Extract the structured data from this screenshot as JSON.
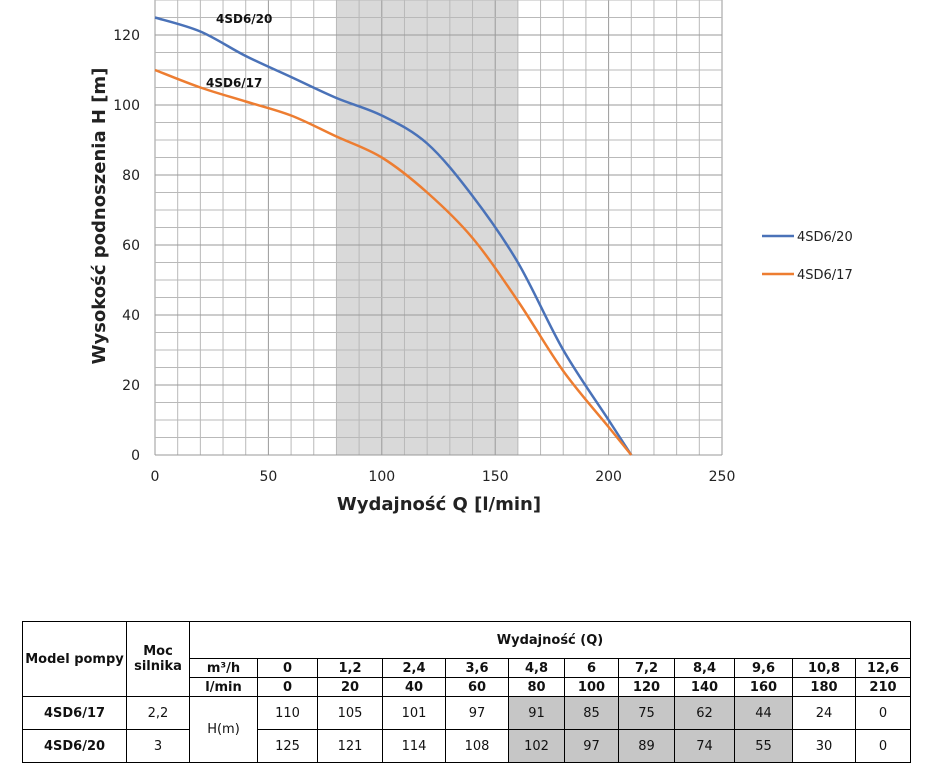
{
  "chart_data": {
    "type": "line",
    "title": "",
    "xlabel": "Wydajność Q [l/min]",
    "ylabel": "Wysokość podnoszenia H [m]",
    "xlim": [
      0,
      250
    ],
    "ylim": [
      0,
      130
    ],
    "xticks": [
      0,
      50,
      100,
      150,
      200,
      250
    ],
    "yticks": [
      0,
      20,
      40,
      60,
      80,
      100,
      120
    ],
    "grid": true,
    "highlight_band": {
      "x": [
        80,
        160
      ],
      "color": "#d9d9d9"
    },
    "legend_position": "right",
    "series": [
      {
        "name": "4SD6/20",
        "color": "#4a72b8",
        "label": "4SD6/20",
        "x": [
          0,
          20,
          40,
          60,
          80,
          100,
          120,
          140,
          160,
          180,
          200,
          210
        ],
        "y": [
          125,
          121,
          114,
          108,
          102,
          97,
          89,
          74,
          55,
          30,
          10,
          0
        ]
      },
      {
        "name": "4SD6/17",
        "color": "#ed7d31",
        "label": "4SD6/17",
        "x": [
          0,
          20,
          40,
          60,
          80,
          100,
          120,
          140,
          160,
          180,
          200,
          210
        ],
        "y": [
          110,
          105,
          101,
          97,
          91,
          85,
          75,
          62,
          44,
          24,
          8,
          0
        ]
      }
    ]
  },
  "table": {
    "model_header": "Model pompy",
    "power_header": [
      "Moc",
      "silnika"
    ],
    "flow_header": "Wydajność (Q)",
    "unit_m3h": "m³/h",
    "unit_lmin": "l/min",
    "m3h": [
      "0",
      "1,2",
      "2,4",
      "3,6",
      "4,8",
      "6",
      "7,2",
      "8,4",
      "9,6",
      "10,8",
      "12,6"
    ],
    "lmin": [
      "0",
      "20",
      "40",
      "60",
      "80",
      "100",
      "120",
      "140",
      "160",
      "180",
      "210"
    ],
    "h_label": "H(m)",
    "shaded_columns": [
      4,
      5,
      6,
      7,
      8
    ],
    "rows": [
      {
        "model": "4SD6/17",
        "power": "2,2",
        "values": [
          "110",
          "105",
          "101",
          "97",
          "91",
          "85",
          "75",
          "62",
          "44",
          "24",
          "0"
        ]
      },
      {
        "model": "4SD6/20",
        "power": "3",
        "values": [
          "125",
          "121",
          "114",
          "108",
          "102",
          "97",
          "89",
          "74",
          "55",
          "30",
          "0"
        ]
      }
    ]
  }
}
